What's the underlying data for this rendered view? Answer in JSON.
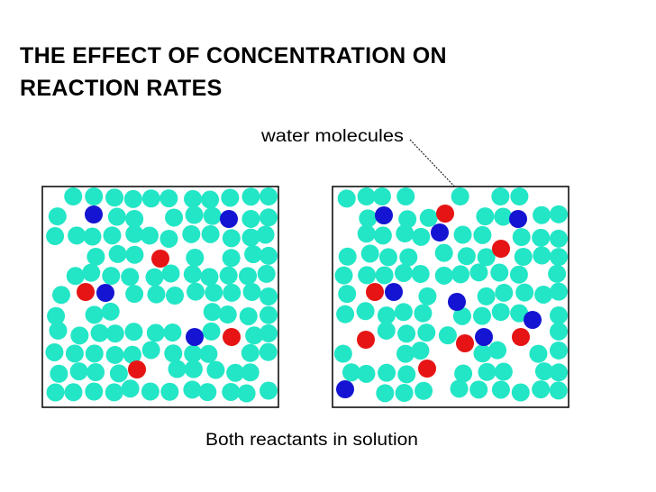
{
  "title_lines": [
    "THE EFFECT OF CONCENTRATION ON",
    "REACTION RATES"
  ],
  "label": "water molecules",
  "caption": "Both reactants in solution"
}
